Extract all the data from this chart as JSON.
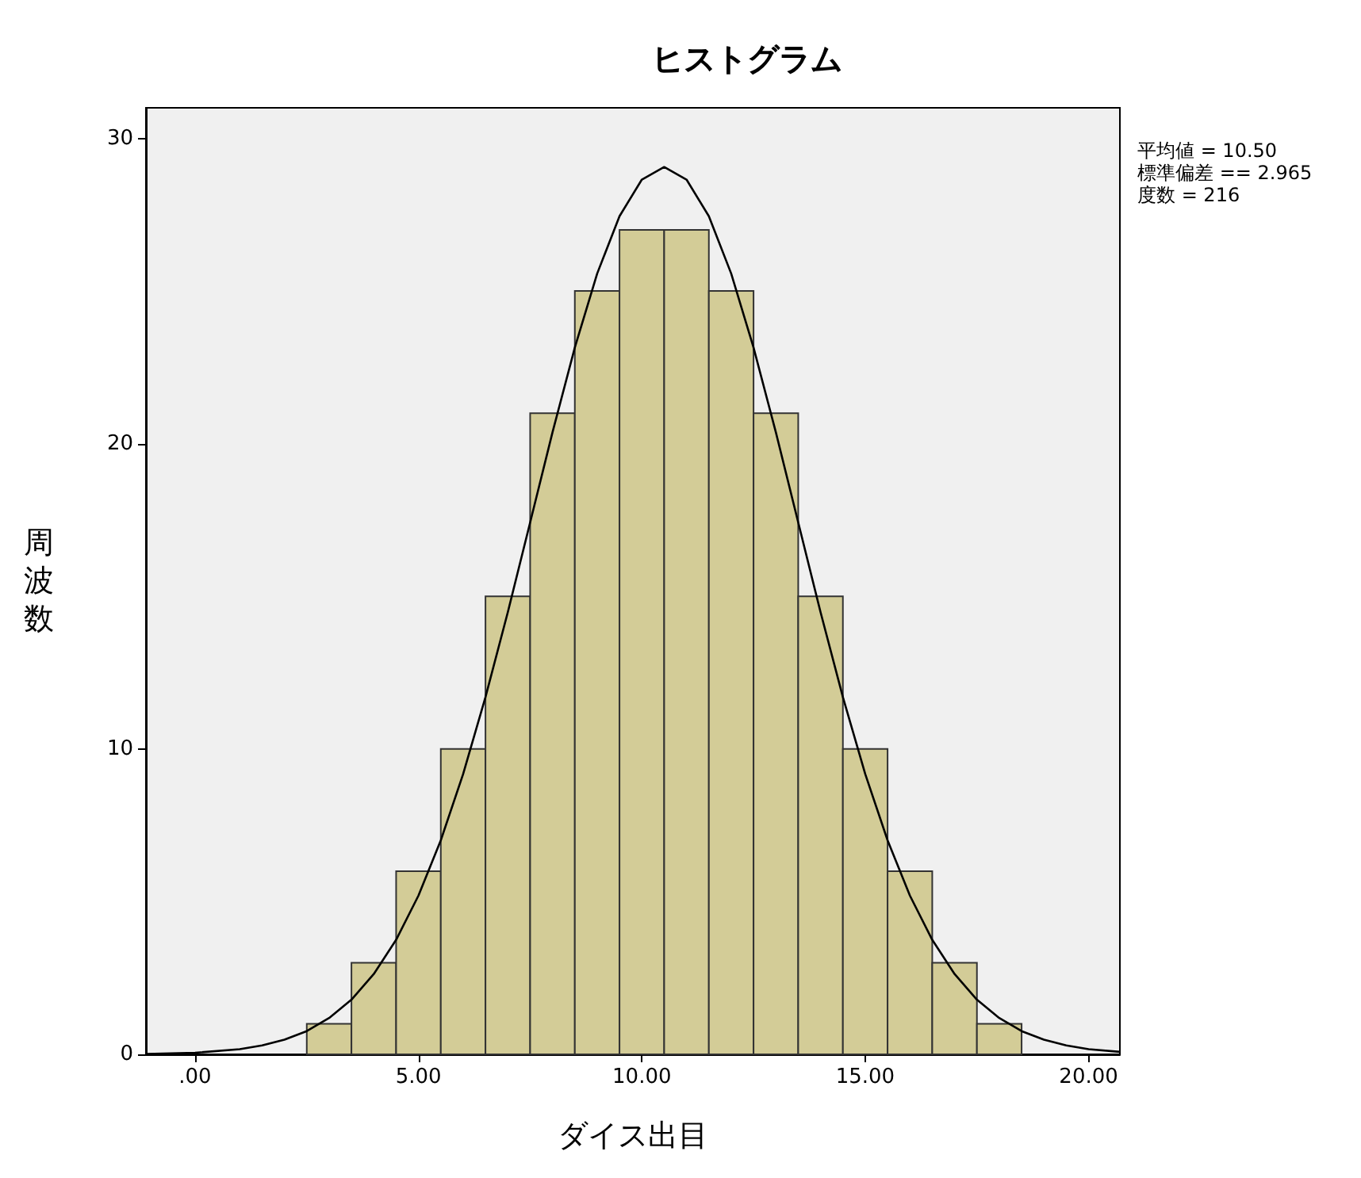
{
  "chart_data": {
    "type": "histogram",
    "title": "ヒストグラム",
    "xlabel": "ダイス出目",
    "ylabel": "周波数",
    "bins": [
      2.5,
      3.5,
      4.5,
      5.5,
      6.5,
      7.5,
      8.5,
      9.5,
      10.5,
      11.5,
      12.5,
      13.5,
      14.5,
      15.5,
      16.5,
      17.5,
      18.5
    ],
    "values": [
      1,
      3,
      6,
      10,
      15,
      21,
      25,
      27,
      27,
      25,
      21,
      15,
      10,
      6,
      3,
      1
    ],
    "color": "#d3cc97",
    "series": [
      {
        "type": "line",
        "color": "#000000",
        "marker": "none",
        "x": [
          -1.1,
          0,
          1,
          1.5,
          2,
          2.5,
          3,
          3.5,
          4,
          4.5,
          5,
          5.5,
          6,
          6.5,
          7,
          7.5,
          8,
          8.5,
          9,
          9.5,
          10,
          10.5,
          11,
          11.5,
          12,
          12.5,
          13,
          13.5,
          14,
          14.5,
          15,
          15.5,
          16,
          16.5,
          17,
          17.5,
          18,
          18.5,
          19,
          19.5,
          20,
          20.7
        ],
        "values": [
          0.01,
          0.05,
          0.17,
          0.29,
          0.48,
          0.76,
          1.19,
          1.79,
          2.63,
          3.75,
          5.2,
          7.01,
          9.18,
          11.7,
          14.48,
          17.42,
          20.37,
          23.15,
          25.57,
          27.45,
          28.65,
          29.06,
          28.65,
          27.45,
          25.57,
          23.15,
          20.37,
          17.42,
          14.48,
          11.7,
          9.18,
          7.01,
          5.2,
          3.75,
          2.63,
          1.79,
          1.19,
          0.76,
          0.48,
          0.29,
          0.17,
          0.08
        ]
      }
    ],
    "xlim": [
      -1.1,
      20.7
    ],
    "xticks": [
      {
        "value": 0,
        "label": ".00"
      },
      {
        "value": 5,
        "label": "5.00"
      },
      {
        "value": 10,
        "label": "10.00"
      },
      {
        "value": 15,
        "label": "15.00"
      },
      {
        "value": 20,
        "label": "20.00"
      }
    ],
    "ylim": [
      0,
      31
    ],
    "yticks": [
      0,
      10,
      20,
      30
    ],
    "annotations": [
      "平均値 = 10.50",
      "標準偏差 == 2.965",
      "度数 = 216"
    ],
    "grid": false
  }
}
